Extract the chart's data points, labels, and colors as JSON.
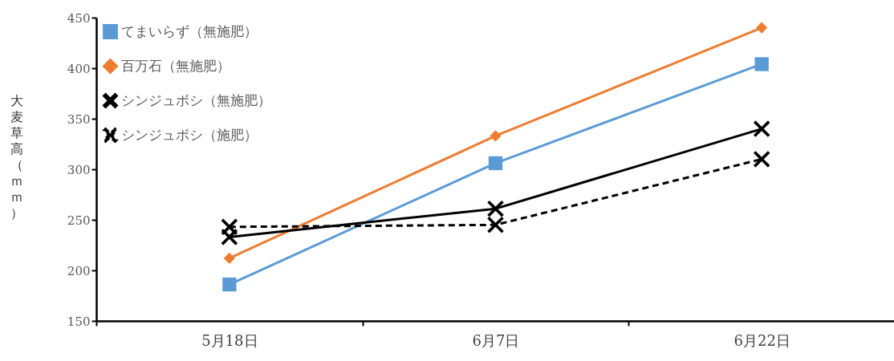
{
  "chart_data": {
    "type": "line",
    "ylabel": "大麦草高（ｍｍ）",
    "categories": [
      "5月18日",
      "6月7日",
      "6月22日"
    ],
    "ylim": [
      150,
      450
    ],
    "yticks": [
      150,
      200,
      250,
      300,
      350,
      400,
      450
    ],
    "grid": false,
    "legend": "top left",
    "series": [
      {
        "name": "てまいらず（無施肥）",
        "color": "#5b9bd5",
        "marker": "square",
        "line_style": "solid",
        "values": [
          186,
          306,
          404
        ]
      },
      {
        "name": "百万石（無施肥）",
        "color": "#ed7d31",
        "marker": "diamond",
        "line_style": "solid",
        "values": [
          212,
          333,
          440
        ]
      },
      {
        "name": "シンジュボシ（無施肥）",
        "color": "#000000",
        "marker": "cross",
        "line_style": "solid",
        "values": [
          233,
          261,
          340
        ]
      },
      {
        "name": "シンジュボシ（施肥）",
        "color": "#000000",
        "marker": "cross",
        "line_style": "dashed",
        "values": [
          243,
          245,
          310
        ]
      }
    ]
  }
}
